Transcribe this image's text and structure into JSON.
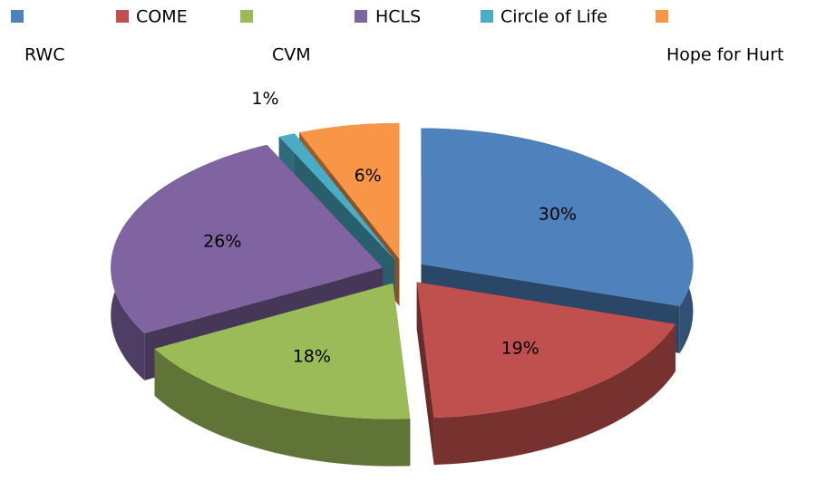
{
  "chart_data": {
    "type": "pie",
    "three_d": true,
    "exploded": true,
    "categories": [
      "RWC",
      "COME",
      "CVM",
      "HCLS",
      "Circle of Life",
      "Hope for Hurt"
    ],
    "values": [
      30,
      19,
      18,
      26,
      1,
      6
    ],
    "value_labels": [
      "30%",
      "19%",
      "18%",
      "26%",
      "1%",
      "6%"
    ],
    "colors": [
      "#4f81bd",
      "#c0504d",
      "#9bbb59",
      "#8064a2",
      "#4bacc6",
      "#f79646"
    ],
    "legend": "top"
  }
}
